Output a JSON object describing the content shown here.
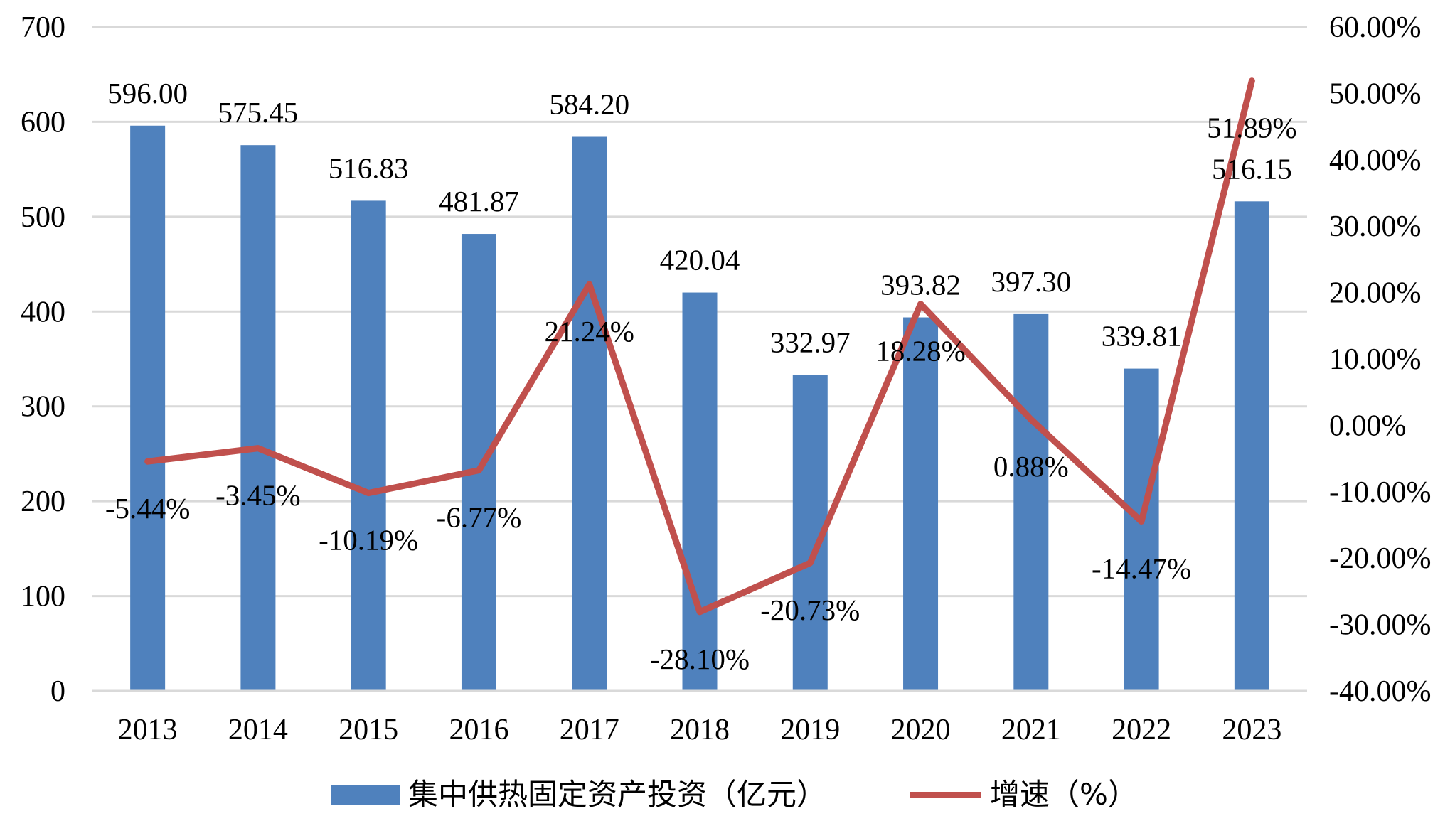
{
  "chart_data": {
    "type": "bar+line",
    "categories": [
      "2013",
      "2014",
      "2015",
      "2016",
      "2017",
      "2018",
      "2019",
      "2020",
      "2021",
      "2022",
      "2023"
    ],
    "series": [
      {
        "name": "集中供热固定资产投资（亿元）",
        "type": "bar",
        "axis": "left",
        "color": "#4F81BD",
        "values": [
          596.0,
          575.45,
          516.83,
          481.87,
          584.2,
          420.04,
          332.97,
          393.82,
          397.3,
          339.81,
          516.15
        ],
        "labels": [
          "596.00",
          "575.45",
          "516.83",
          "481.87",
          "584.20",
          "420.04",
          "332.97",
          "393.82",
          "397.30",
          "339.81",
          "516.15"
        ]
      },
      {
        "name": "增速（%）",
        "type": "line",
        "axis": "right",
        "color": "#C0504D",
        "values": [
          -5.44,
          -3.45,
          -10.19,
          -6.77,
          21.24,
          -28.1,
          -20.73,
          18.28,
          0.88,
          -14.47,
          51.89
        ],
        "labels": [
          "-5.44%",
          "-3.45%",
          "-10.19%",
          "-6.77%",
          "21.24%",
          "-28.10%",
          "-20.73%",
          "18.28%",
          "0.88%",
          "-14.47%",
          "51.89%"
        ]
      }
    ],
    "y_left": {
      "min": 0,
      "max": 700,
      "ticks": [
        0,
        100,
        200,
        300,
        400,
        500,
        600,
        700
      ],
      "tick_labels": [
        "0",
        "100",
        "200",
        "300",
        "400",
        "500",
        "600",
        "700"
      ]
    },
    "y_right": {
      "min": -40,
      "max": 60,
      "ticks": [
        -40,
        -30,
        -20,
        -10,
        0,
        10,
        20,
        30,
        40,
        50,
        60
      ],
      "tick_labels": [
        "-40.00%",
        "-30.00%",
        "-20.00%",
        "-10.00%",
        "0.00%",
        "10.00%",
        "20.00%",
        "30.00%",
        "40.00%",
        "50.00%",
        "60.00%"
      ]
    },
    "grid": true,
    "legend_position": "bottom",
    "gridline_color": "#D9D9D9",
    "axis_line_color": "#D9D9D9"
  }
}
